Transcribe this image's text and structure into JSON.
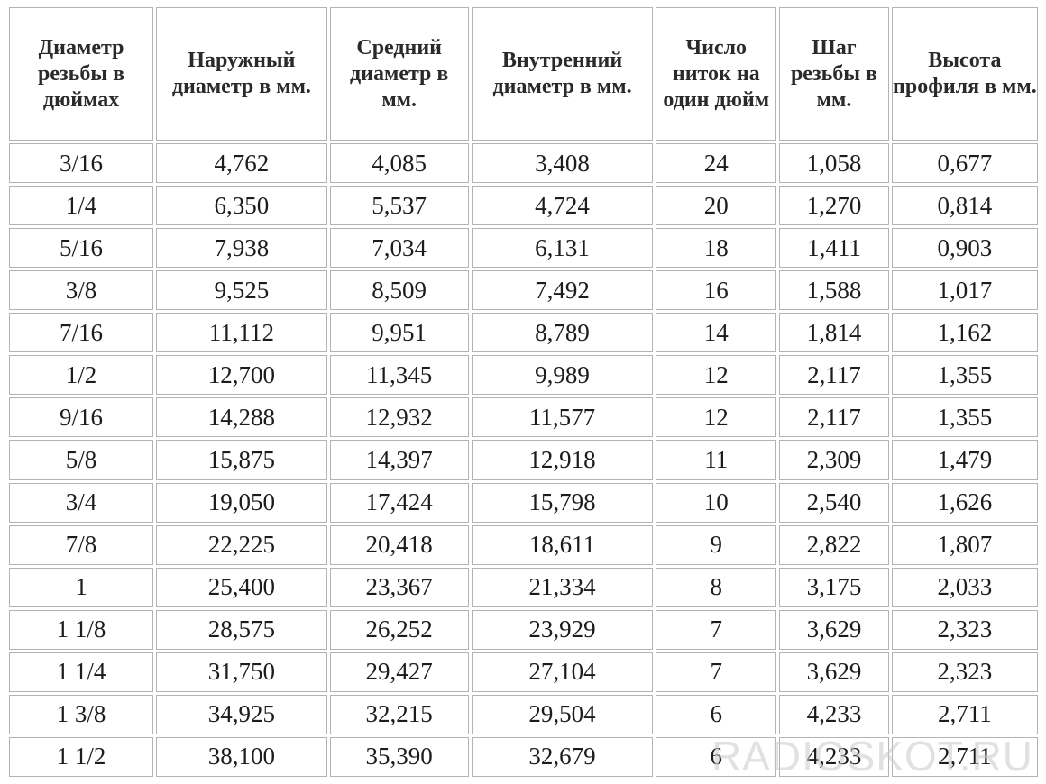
{
  "table": {
    "headers": [
      "Диаметр резьбы в дюймах",
      "Наружный диаметр в мм.",
      "Средний диаметр в мм.",
      "Внутренний диаметр в мм.",
      "Число ниток на один дюйм",
      "Шаг резьбы в мм.",
      "Высота профиля в мм."
    ],
    "rows": [
      [
        "3/16",
        "4,762",
        "4,085",
        "3,408",
        "24",
        "1,058",
        "0,677"
      ],
      [
        "1/4",
        "6,350",
        "5,537",
        "4,724",
        "20",
        "1,270",
        "0,814"
      ],
      [
        "5/16",
        "7,938",
        "7,034",
        "6,131",
        "18",
        "1,411",
        "0,903"
      ],
      [
        "3/8",
        "9,525",
        "8,509",
        "7,492",
        "16",
        "1,588",
        "1,017"
      ],
      [
        "7/16",
        "11,112",
        "9,951",
        "8,789",
        "14",
        "1,814",
        "1,162"
      ],
      [
        "1/2",
        "12,700",
        "11,345",
        "9,989",
        "12",
        "2,117",
        "1,355"
      ],
      [
        "9/16",
        "14,288",
        "12,932",
        "11,577",
        "12",
        "2,117",
        "1,355"
      ],
      [
        "5/8",
        "15,875",
        "14,397",
        "12,918",
        "11",
        "2,309",
        "1,479"
      ],
      [
        "3/4",
        "19,050",
        "17,424",
        "15,798",
        "10",
        "2,540",
        "1,626"
      ],
      [
        "7/8",
        "22,225",
        "20,418",
        "18,611",
        "9",
        "2,822",
        "1,807"
      ],
      [
        "1",
        "25,400",
        "23,367",
        "21,334",
        "8",
        "3,175",
        "2,033"
      ],
      [
        "1 1/8",
        "28,575",
        "26,252",
        "23,929",
        "7",
        "3,629",
        "2,323"
      ],
      [
        "1 1/4",
        "31,750",
        "29,427",
        "27,104",
        "7",
        "3,629",
        "2,323"
      ],
      [
        "1 3/8",
        "34,925",
        "32,215",
        "29,504",
        "6",
        "4,233",
        "2,711"
      ],
      [
        "1 1/2",
        "38,100",
        "35,390",
        "32,679",
        "6",
        "4,233",
        "2,711"
      ]
    ]
  },
  "watermark": "RADIOSKOT.RU",
  "colors": {
    "border": "#b3b3b3",
    "text": "#1c1c1c",
    "background": "#ffffff"
  }
}
